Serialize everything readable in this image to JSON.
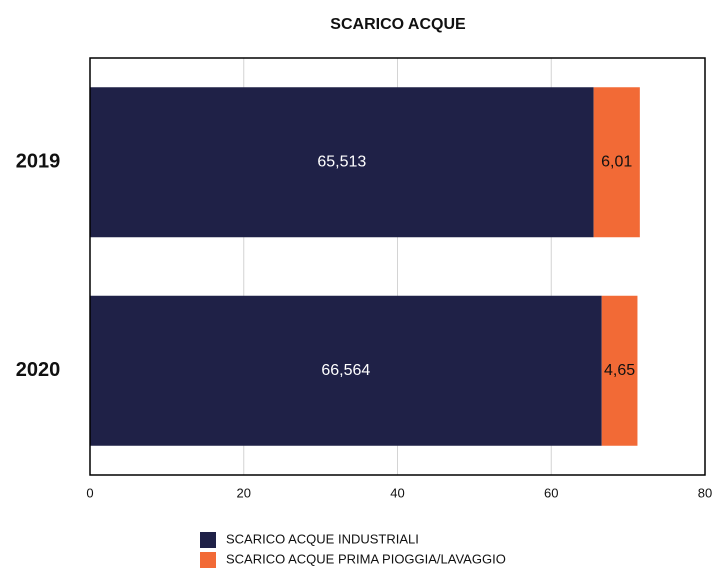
{
  "chart_data": {
    "type": "stacked_barh",
    "title": "SCARICO ACQUE",
    "categories": [
      "2019",
      "2020"
    ],
    "series": [
      {
        "name": "SCARICO ACQUE INDUSTRIALI",
        "color": "#1f2147",
        "values": [
          65.513,
          66.564
        ],
        "value_labels": [
          "65,513",
          "66,564"
        ]
      },
      {
        "name": "SCARICO ACQUE PRIMA PIOGGIA/LAVAGGIO",
        "color": "#f26a36",
        "values": [
          6.01,
          4.65
        ],
        "value_labels": [
          "6,01",
          "4,65"
        ]
      }
    ],
    "xlim": [
      0,
      80
    ],
    "xticks": [
      0,
      20,
      40,
      60,
      80
    ],
    "grid": true
  }
}
